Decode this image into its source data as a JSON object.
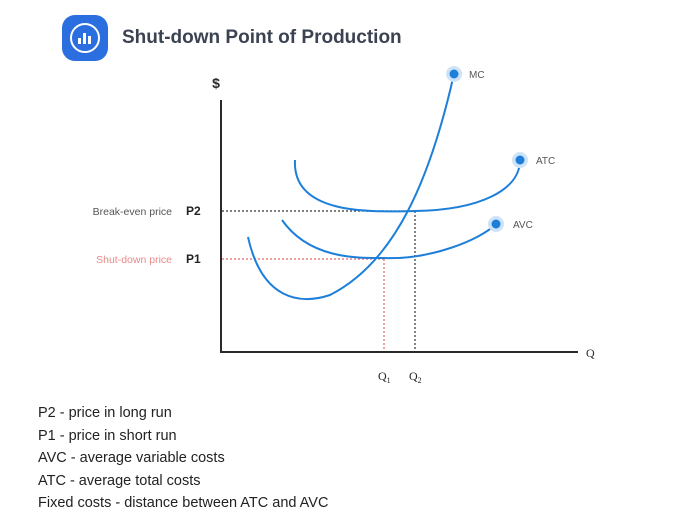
{
  "header": {
    "title": "Shut-down Point of Production",
    "icon": "bar-chart-icon",
    "icon_bg": "#2a6ee0"
  },
  "chart_data": {
    "type": "line",
    "title": "Shut-down Point of Production",
    "xlabel": "Q",
    "ylabel": "$",
    "grid": false,
    "legend": "labels at curve ends",
    "series": [
      {
        "name": "MC",
        "color": "#1e7fd9"
      },
      {
        "name": "ATC",
        "color": "#1e7fd9"
      },
      {
        "name": "AVC",
        "color": "#1e7fd9"
      }
    ],
    "price_levels": [
      {
        "id": "P2",
        "desc": "Break-even price",
        "label": "P2",
        "color": "#222222",
        "desc_color": "#555555"
      },
      {
        "id": "P1",
        "desc": "Shut-down price",
        "label": "P1",
        "color": "#e06b6b",
        "desc_color": "#e88a8a"
      }
    ],
    "quantities": [
      {
        "id": "Q1",
        "label": "Q",
        "sub": "1",
        "color": "#e06b6b"
      },
      {
        "id": "Q2",
        "label": "Q",
        "sub": "2",
        "color": "#222222"
      }
    ]
  },
  "notes": [
    "P2 - price in long run",
    "P1 - price in short run",
    "AVC - average variable costs",
    "ATC - average total  costs",
    "Fixed costs - distance between ATC and AVC"
  ]
}
